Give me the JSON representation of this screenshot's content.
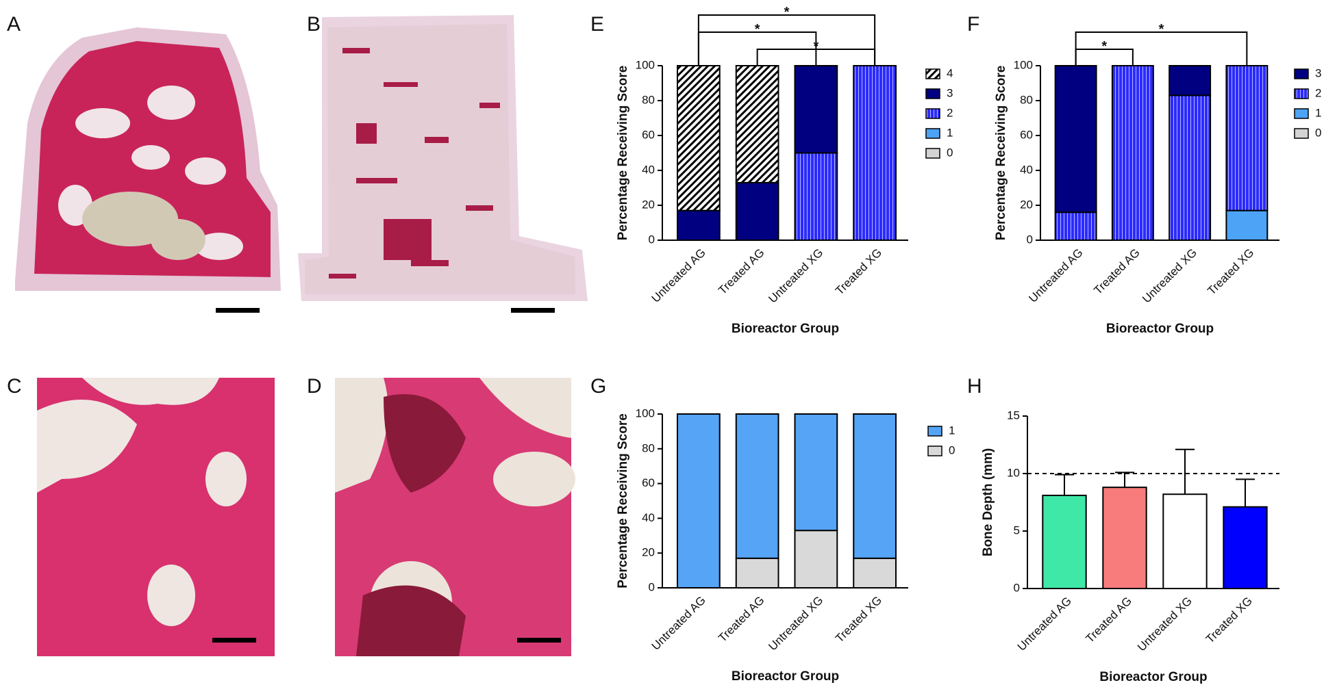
{
  "panel_labels": [
    "A",
    "B",
    "C",
    "D",
    "E",
    "F",
    "G",
    "H"
  ],
  "chart_data": [
    {
      "type": "bar",
      "stacked": true,
      "ylabel": "Percentage Receiving Score",
      "xlabel": "Bioreactor Group",
      "categories": [
        "Untreated AG",
        "Treated AG",
        "Untreated XG",
        "Treated XG"
      ],
      "series": [
        {
          "name": "0",
          "color": "#d3d3d3",
          "values": [
            0,
            0,
            0,
            0
          ]
        },
        {
          "name": "1",
          "color": "#4da3f5",
          "values": [
            0,
            0,
            0,
            0
          ]
        },
        {
          "name": "2",
          "color": "#2b2bff",
          "pattern": "stripes",
          "values": [
            0,
            0,
            50,
            100
          ]
        },
        {
          "name": "3",
          "color": "#000080",
          "values": [
            17,
            33,
            50,
            0
          ]
        },
        {
          "name": "4",
          "color": "#000000",
          "pattern": "hatch",
          "values": [
            83,
            67,
            0,
            0
          ]
        }
      ],
      "ylim": [
        0,
        100
      ],
      "yticks": [
        0,
        20,
        40,
        60,
        80,
        100
      ],
      "annotations": [
        {
          "text": "*",
          "between": [
            "Untreated AG",
            "Treated XG"
          ]
        },
        {
          "text": "*",
          "between": [
            "Untreated AG",
            "Untreated XG"
          ]
        },
        {
          "text": "*",
          "between": [
            "Treated AG",
            "Treated XG"
          ]
        }
      ]
    },
    {
      "type": "bar",
      "stacked": true,
      "ylabel": "Percentage Receiving Score",
      "xlabel": "Bioreactor Group",
      "categories": [
        "Untreated AG",
        "Treated AG",
        "Untreated XG",
        "Treated XG"
      ],
      "series": [
        {
          "name": "0",
          "color": "#d3d3d3",
          "values": [
            0,
            0,
            0,
            0
          ]
        },
        {
          "name": "1",
          "color": "#4da3f5",
          "values": [
            0,
            0,
            0,
            17
          ]
        },
        {
          "name": "2",
          "color": "#2b2bff",
          "pattern": "stripes",
          "values": [
            16,
            100,
            83,
            83
          ]
        },
        {
          "name": "3",
          "color": "#000080",
          "values": [
            84,
            0,
            17,
            0
          ]
        }
      ],
      "ylim": [
        0,
        100
      ],
      "yticks": [
        0,
        20,
        40,
        60,
        80,
        100
      ],
      "annotations": [
        {
          "text": "*",
          "between": [
            "Untreated AG",
            "Treated XG"
          ]
        },
        {
          "text": "*",
          "between": [
            "Untreated AG",
            "Treated AG"
          ]
        }
      ]
    },
    {
      "type": "bar",
      "stacked": true,
      "ylabel": "Percentage Receiving Score",
      "xlabel": "Bioreactor Group",
      "categories": [
        "Untreated AG",
        "Treated AG",
        "Untreated XG",
        "Treated XG"
      ],
      "series": [
        {
          "name": "0",
          "color": "#d9d9d9",
          "values": [
            0,
            17,
            33,
            17
          ]
        },
        {
          "name": "1",
          "color": "#55a4f5",
          "values": [
            100,
            83,
            67,
            83
          ]
        }
      ],
      "ylim": [
        0,
        100
      ],
      "yticks": [
        0,
        20,
        40,
        60,
        80,
        100
      ]
    },
    {
      "type": "bar",
      "ylabel": "Bone Depth (mm)",
      "xlabel": "Bioreactor Group",
      "categories": [
        "Untreated AG",
        "Treated AG",
        "Untreated XG",
        "Treated XG"
      ],
      "values": [
        8.1,
        8.8,
        8.2,
        7.1
      ],
      "errors": [
        1.8,
        1.3,
        3.9,
        2.4
      ],
      "colors": [
        "#40e8a8",
        "#f87c7c",
        "#ffffff",
        "#0000ff"
      ],
      "ylim": [
        0,
        15
      ],
      "yticks": [
        0,
        5,
        10,
        15
      ],
      "reference_line": 10
    }
  ]
}
